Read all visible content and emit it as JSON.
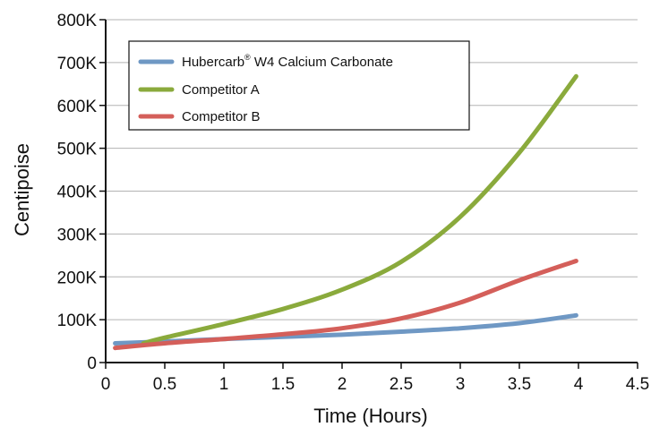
{
  "chart_data": {
    "type": "line",
    "title": "",
    "xlabel": "Time (Hours)",
    "ylabel": "Centipoise",
    "xlim": [
      0,
      4.5
    ],
    "ylim": [
      0,
      800000
    ],
    "x_ticks": [
      0,
      0.5,
      1,
      1.5,
      2,
      2.5,
      3,
      3.5,
      4,
      4.5
    ],
    "x_tick_labels": [
      "0",
      "0.5",
      "1",
      "1.5",
      "2",
      "2.5",
      "3",
      "3.5",
      "4",
      "4.5"
    ],
    "y_ticks": [
      0,
      100000,
      200000,
      300000,
      400000,
      500000,
      600000,
      700000,
      800000
    ],
    "y_tick_labels": [
      "0",
      "100K",
      "200K",
      "300K",
      "400K",
      "500K",
      "600K",
      "700K",
      "800K"
    ],
    "grid": "horizontal",
    "legend_position": "top-left",
    "series": [
      {
        "name": "Hubercarb",
        "name_superscript": "®",
        "name_suffix": " W4 Calcium Carbonate",
        "color": "#6f98c4",
        "x": [
          0.08,
          0.5,
          1,
          1.5,
          2,
          2.5,
          3,
          3.5,
          3.98
        ],
        "y": [
          45000,
          49000,
          55000,
          60000,
          65000,
          72000,
          80000,
          92000,
          110000
        ]
      },
      {
        "name": "Competitor A",
        "color": "#8aaa3c",
        "x": [
          0.32,
          0.5,
          1,
          1.5,
          2,
          2.5,
          3,
          3.5,
          3.98
        ],
        "y": [
          45000,
          58000,
          90000,
          125000,
          170000,
          235000,
          340000,
          490000,
          668000
        ]
      },
      {
        "name": "Competitor B",
        "color": "#d45f5a",
        "x": [
          0.08,
          0.5,
          1,
          1.5,
          2,
          2.5,
          3,
          3.5,
          3.98
        ],
        "y": [
          34000,
          45000,
          55000,
          66000,
          80000,
          103000,
          140000,
          192000,
          237000
        ]
      }
    ]
  }
}
